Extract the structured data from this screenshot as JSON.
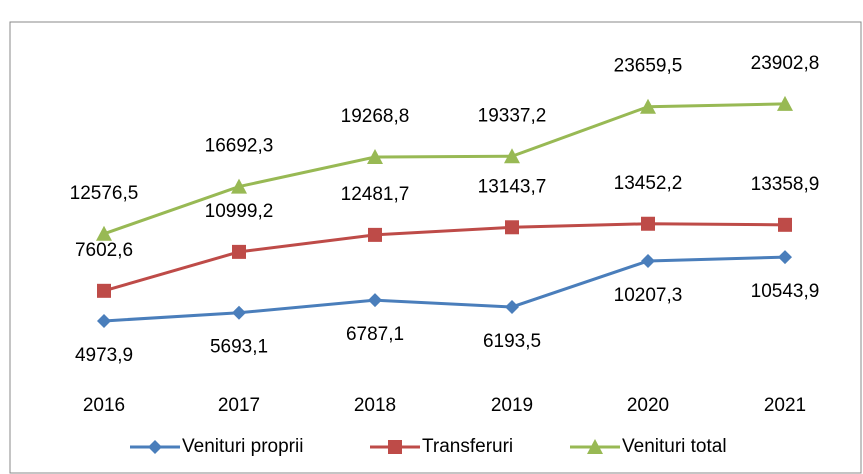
{
  "chart_data": {
    "type": "line",
    "categories": [
      "2016",
      "2017",
      "2018",
      "2019",
      "2020",
      "2021"
    ],
    "series": [
      {
        "name": "Venituri proprii",
        "color": "#4a7ebb",
        "marker": "diamond",
        "values": [
          4973.9,
          5693.1,
          6787.1,
          6193.5,
          10207.3,
          10543.9
        ],
        "value_labels": [
          "4973,9",
          "5693,1",
          "6787,1",
          "6193,5",
          "10207,3",
          "10543,9"
        ]
      },
      {
        "name": "Transferuri",
        "color": "#be4b48",
        "marker": "square",
        "values": [
          7602.6,
          10999.2,
          12481.7,
          13143.7,
          13452.2,
          13358.9
        ],
        "value_labels": [
          "7602,6",
          "10999,2",
          "12481,7",
          "13143,7",
          "13452,2",
          "13358,9"
        ]
      },
      {
        "name": "Venituri total",
        "color": "#98b954",
        "marker": "triangle",
        "values": [
          12576.5,
          16692.3,
          19268.8,
          19337.2,
          23659.5,
          23902.8
        ],
        "value_labels": [
          "12576,5",
          "16692,3",
          "19268,8",
          "19337,2",
          "23659,5",
          "23902,8"
        ]
      }
    ],
    "ylim": [
      0,
      30000
    ],
    "legend": "bottom"
  }
}
